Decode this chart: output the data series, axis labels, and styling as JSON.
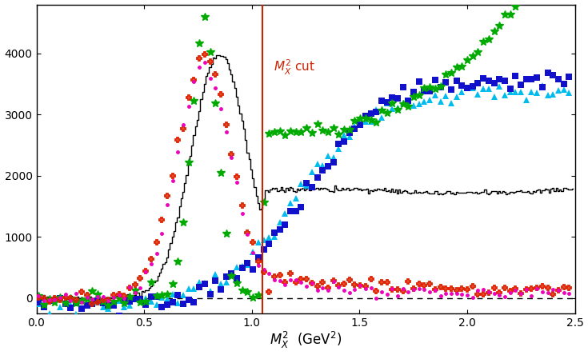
{
  "xlim": [
    0,
    2.5
  ],
  "ylim": [
    -250,
    4800
  ],
  "xlabel": "$M_X^2$  (GeV$^2$)",
  "cut_x": 1.05,
  "cut_label": "$M_X^2$ cut",
  "cut_label_color": "#cc2200",
  "cut_line_color": "#cc2200",
  "background_color": "#ffffff",
  "dashed_y": 0,
  "yticks": [
    0,
    1000,
    2000,
    3000,
    4000
  ],
  "xticks": [
    0,
    0.5,
    1.0,
    1.5,
    2.0,
    2.5
  ]
}
